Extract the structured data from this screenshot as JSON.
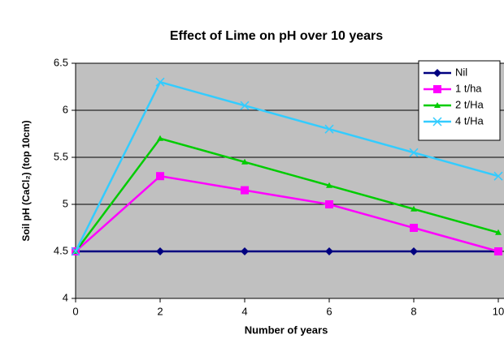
{
  "chart_data": {
    "type": "line",
    "title": "Effect of Lime on pH over 10 years",
    "x_label": "Number of years",
    "y_label": "Soil pH (CaCl₂) (top 10cm)",
    "x": [
      0,
      2,
      4,
      6,
      8,
      10
    ],
    "series": [
      {
        "name": "Nil",
        "color": "#000080",
        "marker": "diamond",
        "values": [
          4.5,
          4.5,
          4.5,
          4.5,
          4.5,
          4.5
        ]
      },
      {
        "name": "1 t/ha",
        "color": "#ff00ff",
        "marker": "square",
        "values": [
          4.5,
          5.3,
          5.15,
          5.0,
          4.75,
          4.5
        ]
      },
      {
        "name": "2 t/Ha",
        "color": "#00cc00",
        "marker": "triangle",
        "values": [
          4.5,
          5.7,
          5.45,
          5.2,
          4.95,
          4.7
        ]
      },
      {
        "name": "4 t/Ha",
        "color": "#33ccff",
        "marker": "x",
        "values": [
          4.5,
          6.3,
          6.05,
          5.8,
          5.55,
          5.3
        ]
      }
    ],
    "xlim": [
      0,
      10
    ],
    "xticks": [
      0,
      2,
      4,
      6,
      8,
      10
    ],
    "ylim": [
      4,
      6.5
    ],
    "yticks": [
      4,
      4.5,
      5,
      5.5,
      6,
      6.5
    ],
    "grid": true,
    "plot_background": "#c0c0c0",
    "legend": "upper right"
  }
}
